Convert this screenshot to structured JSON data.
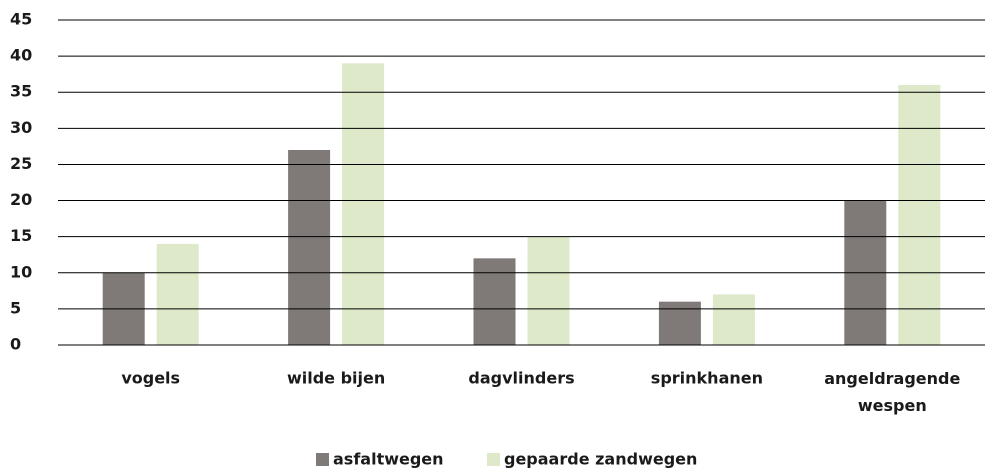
{
  "chart_data": {
    "type": "bar",
    "categories": [
      "vogels",
      "wilde bijen",
      "dagvlinders",
      "sprinkhanen",
      "angeldragende wespen"
    ],
    "series": [
      {
        "name": "asfaltwegen",
        "color": "#7f7a78",
        "values": [
          10,
          27,
          12,
          6,
          20
        ]
      },
      {
        "name": "gepaarde zandwegen",
        "color": "#dde9c9",
        "values": [
          14,
          39,
          15,
          7,
          36
        ]
      }
    ],
    "ylim": [
      0,
      45
    ],
    "yticks": [
      0,
      5,
      10,
      15,
      20,
      25,
      30,
      35,
      40,
      45
    ],
    "grid": true,
    "legend": "bottom"
  }
}
